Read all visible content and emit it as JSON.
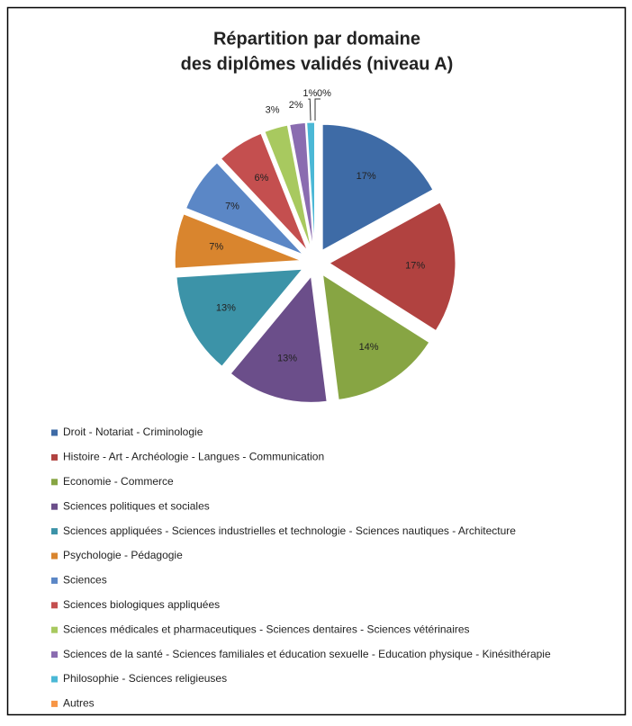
{
  "chart_data": {
    "type": "pie",
    "title": [
      "Répartition par domaine",
      "des diplômes validés (niveau A)"
    ],
    "categories": [
      "Droit - Notariat - Criminologie",
      "Histoire - Art - Archéologie - Langues - Communication",
      "Economie - Commerce",
      "Sciences politiques et sociales",
      "Sciences appliquées - Sciences industrielles et technologie - Sciences nautiques - Architecture",
      "Psychologie - Pédagogie",
      "Sciences",
      "Sciences biologiques appliquées",
      "Sciences médicales et pharmaceutiques - Sciences dentaires - Sciences vétérinaires",
      "Sciences de la santé - Sciences familiales et éducation sexuelle - Education physique - Kinésithérapie",
      "Philosophie - Sciences religieuses",
      "Autres"
    ],
    "values": [
      17,
      17,
      14,
      13,
      13,
      7,
      7,
      6,
      3,
      2,
      1,
      0
    ],
    "value_labels": [
      "17%",
      "17%",
      "14%",
      "13%",
      "13%",
      "7%",
      "7%",
      "6%",
      "3%",
      "2%",
      "1%",
      "0%"
    ],
    "colors": [
      "#3e6ba6",
      "#b14240",
      "#87a543",
      "#6b4e8a",
      "#3c93a8",
      "#d9852e",
      "#5b87c6",
      "#c44f4f",
      "#a8c95f",
      "#8a6cb0",
      "#4bb8d6",
      "#f79646"
    ],
    "legend": "bottom"
  }
}
